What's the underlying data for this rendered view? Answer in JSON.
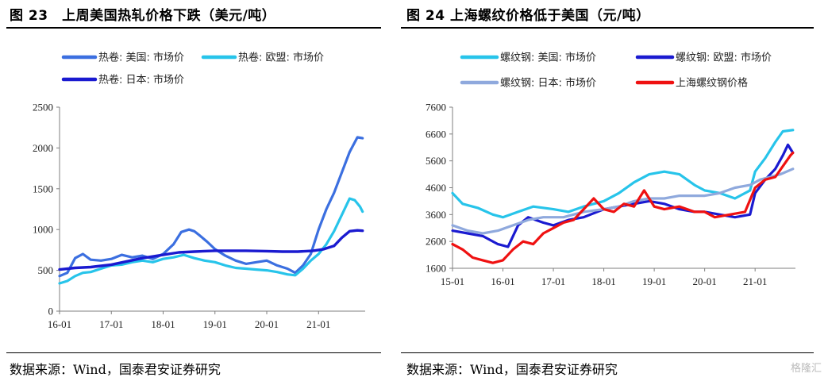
{
  "charts": [
    {
      "title": "图 23　上周美国热轧价格下跌（美元/吨）",
      "source": "数据来源：Wind，国泰君安证券研究"
    },
    {
      "title": "图 24  上海螺纹价格低于美国（元/吨）",
      "source": "数据来源：Wind，国泰君安证券研究"
    }
  ],
  "watermark": "格隆汇",
  "chart_data": [
    {
      "type": "line",
      "title": "图 23　上周美国热轧价格下跌（美元/吨）",
      "xlabel": "",
      "ylabel": "",
      "ylim": [
        0,
        2500
      ],
      "yticks": [
        0,
        500,
        1000,
        1500,
        2000,
        2500
      ],
      "xlim": [
        2016.0,
        2021.9
      ],
      "xticks": [
        2016,
        2017,
        2018,
        2019,
        2020,
        2021
      ],
      "xtick_labels": [
        "16-01",
        "17-01",
        "18-01",
        "19-01",
        "20-01",
        "21-01"
      ],
      "grid": false,
      "legend_position": "top",
      "series": [
        {
          "name": "热卷: 美国: 市场价",
          "color": "#3b6fe0",
          "width": 3.2,
          "points": [
            [
              2016.0,
              430
            ],
            [
              2016.15,
              470
            ],
            [
              2016.3,
              650
            ],
            [
              2016.45,
              700
            ],
            [
              2016.6,
              630
            ],
            [
              2016.8,
              620
            ],
            [
              2017.0,
              640
            ],
            [
              2017.2,
              690
            ],
            [
              2017.4,
              660
            ],
            [
              2017.6,
              680
            ],
            [
              2017.8,
              640
            ],
            [
              2018.0,
              700
            ],
            [
              2018.2,
              820
            ],
            [
              2018.35,
              970
            ],
            [
              2018.5,
              1000
            ],
            [
              2018.6,
              980
            ],
            [
              2018.7,
              930
            ],
            [
              2018.85,
              850
            ],
            [
              2019.0,
              760
            ],
            [
              2019.2,
              680
            ],
            [
              2019.4,
              620
            ],
            [
              2019.6,
              580
            ],
            [
              2019.8,
              600
            ],
            [
              2020.0,
              620
            ],
            [
              2020.2,
              560
            ],
            [
              2020.4,
              520
            ],
            [
              2020.55,
              470
            ],
            [
              2020.7,
              560
            ],
            [
              2020.85,
              700
            ],
            [
              2021.0,
              1000
            ],
            [
              2021.15,
              1250
            ],
            [
              2021.3,
              1450
            ],
            [
              2021.45,
              1700
            ],
            [
              2021.6,
              1950
            ],
            [
              2021.75,
              2130
            ],
            [
              2021.85,
              2120
            ]
          ]
        },
        {
          "name": "热卷: 欧盟: 市场价",
          "color": "#27c4ea",
          "width": 3.2,
          "points": [
            [
              2016.0,
              340
            ],
            [
              2016.15,
              370
            ],
            [
              2016.3,
              430
            ],
            [
              2016.45,
              470
            ],
            [
              2016.6,
              480
            ],
            [
              2016.8,
              520
            ],
            [
              2017.0,
              560
            ],
            [
              2017.2,
              570
            ],
            [
              2017.4,
              600
            ],
            [
              2017.6,
              620
            ],
            [
              2017.8,
              600
            ],
            [
              2018.0,
              640
            ],
            [
              2018.2,
              660
            ],
            [
              2018.4,
              690
            ],
            [
              2018.6,
              650
            ],
            [
              2018.8,
              620
            ],
            [
              2019.0,
              600
            ],
            [
              2019.2,
              560
            ],
            [
              2019.4,
              530
            ],
            [
              2019.6,
              520
            ],
            [
              2019.8,
              510
            ],
            [
              2020.0,
              500
            ],
            [
              2020.2,
              480
            ],
            [
              2020.4,
              450
            ],
            [
              2020.55,
              440
            ],
            [
              2020.7,
              520
            ],
            [
              2020.85,
              620
            ],
            [
              2021.0,
              700
            ],
            [
              2021.15,
              820
            ],
            [
              2021.3,
              980
            ],
            [
              2021.45,
              1180
            ],
            [
              2021.6,
              1380
            ],
            [
              2021.7,
              1360
            ],
            [
              2021.8,
              1280
            ],
            [
              2021.85,
              1220
            ]
          ]
        },
        {
          "name": "热卷: 日本: 市场价",
          "color": "#1a1ad0",
          "width": 3.4,
          "points": [
            [
              2016.0,
              510
            ],
            [
              2016.3,
              530
            ],
            [
              2016.6,
              540
            ],
            [
              2017.0,
              570
            ],
            [
              2017.3,
              610
            ],
            [
              2017.6,
              650
            ],
            [
              2018.0,
              690
            ],
            [
              2018.3,
              720
            ],
            [
              2018.6,
              730
            ],
            [
              2019.0,
              740
            ],
            [
              2019.3,
              740
            ],
            [
              2019.6,
              740
            ],
            [
              2020.0,
              735
            ],
            [
              2020.3,
              730
            ],
            [
              2020.6,
              730
            ],
            [
              2020.9,
              740
            ],
            [
              2021.1,
              760
            ],
            [
              2021.3,
              800
            ],
            [
              2021.45,
              900
            ],
            [
              2021.6,
              980
            ],
            [
              2021.75,
              990
            ],
            [
              2021.85,
              985
            ]
          ]
        }
      ]
    },
    {
      "type": "line",
      "title": "图 24  上海螺纹价格低于美国（元/吨）",
      "xlabel": "",
      "ylabel": "",
      "ylim": [
        1600,
        7600
      ],
      "yticks": [
        1600,
        2600,
        3600,
        4600,
        5600,
        6600,
        7600
      ],
      "xlim": [
        2015.0,
        2021.8
      ],
      "xticks": [
        2015,
        2016,
        2017,
        2018,
        2019,
        2020,
        2021
      ],
      "xtick_labels": [
        "15-01",
        "16-01",
        "17-01",
        "18-01",
        "19-01",
        "20-01",
        "21-01"
      ],
      "grid": false,
      "legend_position": "top",
      "series": [
        {
          "name": "螺纹钢: 美国: 市场价",
          "color": "#27c4ea",
          "width": 3.2,
          "points": [
            [
              2015.0,
              4400
            ],
            [
              2015.2,
              4000
            ],
            [
              2015.5,
              3850
            ],
            [
              2015.8,
              3600
            ],
            [
              2016.0,
              3500
            ],
            [
              2016.3,
              3700
            ],
            [
              2016.6,
              3900
            ],
            [
              2017.0,
              3800
            ],
            [
              2017.3,
              3700
            ],
            [
              2017.6,
              3900
            ],
            [
              2018.0,
              4100
            ],
            [
              2018.3,
              4400
            ],
            [
              2018.6,
              4800
            ],
            [
              2018.9,
              5100
            ],
            [
              2019.2,
              5200
            ],
            [
              2019.5,
              5100
            ],
            [
              2019.8,
              4700
            ],
            [
              2020.0,
              4500
            ],
            [
              2020.3,
              4400
            ],
            [
              2020.6,
              4200
            ],
            [
              2020.9,
              4500
            ],
            [
              2021.0,
              5200
            ],
            [
              2021.2,
              5700
            ],
            [
              2021.4,
              6300
            ],
            [
              2021.55,
              6700
            ],
            [
              2021.75,
              6750
            ]
          ]
        },
        {
          "name": "螺纹钢: 欧盟: 市场价",
          "color": "#1a1ad0",
          "width": 3.2,
          "points": [
            [
              2015.0,
              3000
            ],
            [
              2015.3,
              2900
            ],
            [
              2015.6,
              2800
            ],
            [
              2015.9,
              2500
            ],
            [
              2016.1,
              2400
            ],
            [
              2016.3,
              3200
            ],
            [
              2016.5,
              3500
            ],
            [
              2016.8,
              3300
            ],
            [
              2017.0,
              3200
            ],
            [
              2017.3,
              3400
            ],
            [
              2017.6,
              3500
            ],
            [
              2018.0,
              3800
            ],
            [
              2018.3,
              3900
            ],
            [
              2018.6,
              4000
            ],
            [
              2018.9,
              4100
            ],
            [
              2019.2,
              4000
            ],
            [
              2019.5,
              3800
            ],
            [
              2019.8,
              3700
            ],
            [
              2020.0,
              3700
            ],
            [
              2020.3,
              3600
            ],
            [
              2020.6,
              3500
            ],
            [
              2020.9,
              3600
            ],
            [
              2021.0,
              4400
            ],
            [
              2021.2,
              4900
            ],
            [
              2021.4,
              5300
            ],
            [
              2021.55,
              5800
            ],
            [
              2021.65,
              6200
            ],
            [
              2021.75,
              5900
            ]
          ]
        },
        {
          "name": "螺纹钢: 日本: 市场价",
          "color": "#8fa9dd",
          "width": 3.2,
          "points": [
            [
              2015.0,
              3200
            ],
            [
              2015.3,
              3000
            ],
            [
              2015.6,
              2900
            ],
            [
              2015.9,
              3000
            ],
            [
              2016.2,
              3200
            ],
            [
              2016.5,
              3400
            ],
            [
              2016.8,
              3500
            ],
            [
              2017.2,
              3500
            ],
            [
              2017.6,
              3700
            ],
            [
              2018.0,
              3800
            ],
            [
              2018.3,
              3900
            ],
            [
              2018.6,
              4100
            ],
            [
              2018.9,
              4200
            ],
            [
              2019.2,
              4200
            ],
            [
              2019.5,
              4300
            ],
            [
              2019.8,
              4300
            ],
            [
              2020.0,
              4300
            ],
            [
              2020.3,
              4400
            ],
            [
              2020.6,
              4600
            ],
            [
              2020.9,
              4700
            ],
            [
              2021.1,
              4900
            ],
            [
              2021.3,
              5000
            ],
            [
              2021.5,
              5100
            ],
            [
              2021.75,
              5300
            ]
          ]
        },
        {
          "name": "上海螺纹钢价格",
          "color": "#ef1111",
          "width": 3.2,
          "points": [
            [
              2015.0,
              2500
            ],
            [
              2015.2,
              2300
            ],
            [
              2015.4,
              2000
            ],
            [
              2015.6,
              1900
            ],
            [
              2015.8,
              1800
            ],
            [
              2016.0,
              1900
            ],
            [
              2016.2,
              2300
            ],
            [
              2016.4,
              2600
            ],
            [
              2016.6,
              2500
            ],
            [
              2016.8,
              2900
            ],
            [
              2017.0,
              3100
            ],
            [
              2017.2,
              3300
            ],
            [
              2017.4,
              3400
            ],
            [
              2017.6,
              3800
            ],
            [
              2017.8,
              4200
            ],
            [
              2018.0,
              3800
            ],
            [
              2018.2,
              3700
            ],
            [
              2018.4,
              4000
            ],
            [
              2018.6,
              3900
            ],
            [
              2018.8,
              4500
            ],
            [
              2019.0,
              3900
            ],
            [
              2019.2,
              3800
            ],
            [
              2019.5,
              3900
            ],
            [
              2019.8,
              3700
            ],
            [
              2020.0,
              3700
            ],
            [
              2020.2,
              3500
            ],
            [
              2020.5,
              3600
            ],
            [
              2020.8,
              3700
            ],
            [
              2021.0,
              4600
            ],
            [
              2021.2,
              4900
            ],
            [
              2021.4,
              5000
            ],
            [
              2021.55,
              5400
            ],
            [
              2021.7,
              5800
            ],
            [
              2021.75,
              5900
            ]
          ]
        }
      ]
    }
  ]
}
